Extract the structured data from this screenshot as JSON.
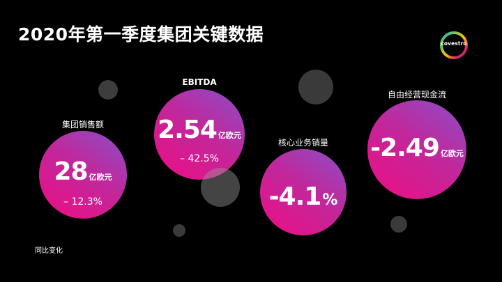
{
  "title": "2020年第一季度集团关键数据",
  "logo": {
    "text": "covestro"
  },
  "kpis": [
    {
      "label": "集团销售额",
      "value": "28",
      "unit": "亿欧元",
      "change": "– 12.3%"
    },
    {
      "label": "EBITDA",
      "value": "2.54",
      "unit": "亿欧元",
      "change": "– 42.5%"
    },
    {
      "label": "核心业务销量",
      "value": "-4.1",
      "unit": "%"
    },
    {
      "label": "自由经营现金流",
      "value": "-2.49",
      "unit": "亿欧元"
    }
  ],
  "footnote": "同比变化",
  "colors": {
    "bubble_start": "#ef0d82",
    "bubble_end": "#8a4fc8",
    "background": "#000000"
  }
}
